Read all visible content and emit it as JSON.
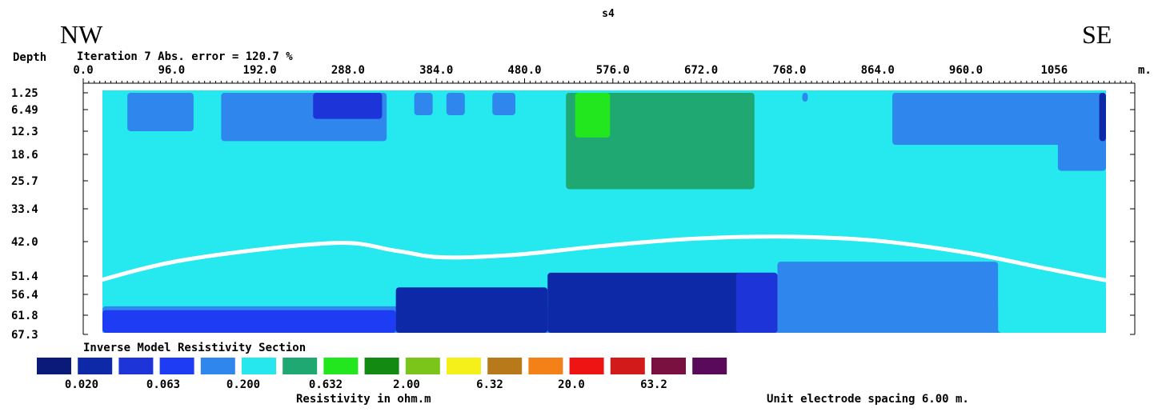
{
  "chart_data": {
    "type": "heatmap",
    "figure_label": "s4",
    "direction_left": "NW",
    "direction_right": "SE",
    "depth_label": "Depth",
    "iteration_text": "Iteration 7 Abs. error = 120.7 %",
    "x_unit": "m.",
    "x_ticks": [
      "0.0",
      "96.0",
      "192.0",
      "288.0",
      "384.0",
      "480.0",
      "576.0",
      "672.0",
      "768.0",
      "864.0",
      "960.0",
      "1056"
    ],
    "x_tick_values": [
      0,
      96,
      192,
      288,
      384,
      480,
      576,
      672,
      768,
      864,
      960,
      1056
    ],
    "xlim": [
      0,
      1140
    ],
    "depth_ticks": [
      "1.25",
      "6.49",
      "12.3",
      "18.6",
      "25.7",
      "33.4",
      "42.0",
      "51.4",
      "56.4",
      "61.8",
      "67.3"
    ],
    "depth_tick_values": [
      1.25,
      6.49,
      12.3,
      18.6,
      25.7,
      33.4,
      42.0,
      51.4,
      56.4,
      61.8,
      67.3
    ],
    "section_title": "Inverse Model Resistivity Section",
    "legend_colors": [
      "#0b1a78",
      "#0d29a8",
      "#1c34d8",
      "#1f3cf5",
      "#2f86ec",
      "#27e7ee",
      "#20a873",
      "#22e61e",
      "#138a12",
      "#7bc41a",
      "#f6f01a",
      "#b8791a",
      "#f48018",
      "#ee1414",
      "#d21a1a",
      "#7a1040",
      "#5a0a5a"
    ],
    "legend_labels": [
      "0.020",
      "0.063",
      "0.200",
      "0.632",
      "2.00",
      "6.32",
      "20.0",
      "63.2"
    ],
    "colorbar_title": "Resistivity in ohm.m",
    "spacing_note": "Unit electrode spacing 6.00 m.",
    "background_color": "#26e8ef",
    "boundary_line_color": "#ffffff",
    "regions": [
      {
        "color": "#2f86ec",
        "x": [
          48,
          120
        ],
        "depth": [
          1.25,
          12.3
        ]
      },
      {
        "color": "#2f86ec",
        "x": [
          150,
          330
        ],
        "depth": [
          1.25,
          15
        ]
      },
      {
        "color": "#1c34d8",
        "x": [
          250,
          325
        ],
        "depth": [
          1.25,
          9
        ]
      },
      {
        "color": "#2f86ec",
        "x": [
          360,
          380
        ],
        "depth": [
          1.25,
          8
        ]
      },
      {
        "color": "#2f86ec",
        "x": [
          395,
          415
        ],
        "depth": [
          1.25,
          8
        ]
      },
      {
        "color": "#2f86ec",
        "x": [
          445,
          470
        ],
        "depth": [
          1.25,
          8
        ]
      },
      {
        "color": "#20a873",
        "x": [
          525,
          730
        ],
        "depth": [
          1.25,
          28
        ]
      },
      {
        "color": "#22e61e",
        "x": [
          535,
          573
        ],
        "depth": [
          1.25,
          14
        ]
      },
      {
        "color": "#2f86ec",
        "x": [
          782,
          788
        ],
        "depth": [
          1.25,
          4
        ]
      },
      {
        "color": "#2f86ec",
        "x": [
          880,
          1090
        ],
        "depth": [
          1.25,
          16
        ]
      },
      {
        "color": "#2f86ec",
        "x": [
          1060,
          1145
        ],
        "depth": [
          1.25,
          23
        ]
      },
      {
        "color": "#0d29a8",
        "x": [
          1105,
          1145
        ],
        "depth": [
          1.25,
          15
        ]
      },
      {
        "color": "#2f86ec",
        "x": [
          0,
          1140
        ],
        "depth": [
          59.5,
          67.3
        ]
      },
      {
        "color": "#1f3cf5",
        "x": [
          0,
          340
        ],
        "depth": [
          60.5,
          67.3
        ]
      },
      {
        "color": "#0d29a8",
        "x": [
          340,
          505
        ],
        "depth": [
          54.5,
          67.3
        ]
      },
      {
        "color": "#0d29a8",
        "x": [
          505,
          755
        ],
        "depth": [
          50.5,
          67.3
        ]
      },
      {
        "color": "#1c34d8",
        "x": [
          710,
          755
        ],
        "depth": [
          50.5,
          67.3
        ]
      },
      {
        "color": "#2f86ec",
        "x": [
          755,
          995
        ],
        "depth": [
          47.5,
          67.3
        ]
      },
      {
        "color": "#26e8ef",
        "x": [
          995,
          1145
        ],
        "depth": [
          40,
          67.3
        ]
      }
    ],
    "boundary_line": {
      "x": [
        5,
        110,
        270,
        340,
        390,
        470,
        560,
        660,
        760,
        860,
        960,
        1040,
        1100,
        1135
      ],
      "depth": [
        53.5,
        47,
        42.4,
        44.5,
        46.3,
        45.6,
        43.3,
        41.3,
        40.7,
        41.7,
        45.0,
        49.0,
        52.0,
        53.5
      ]
    }
  }
}
